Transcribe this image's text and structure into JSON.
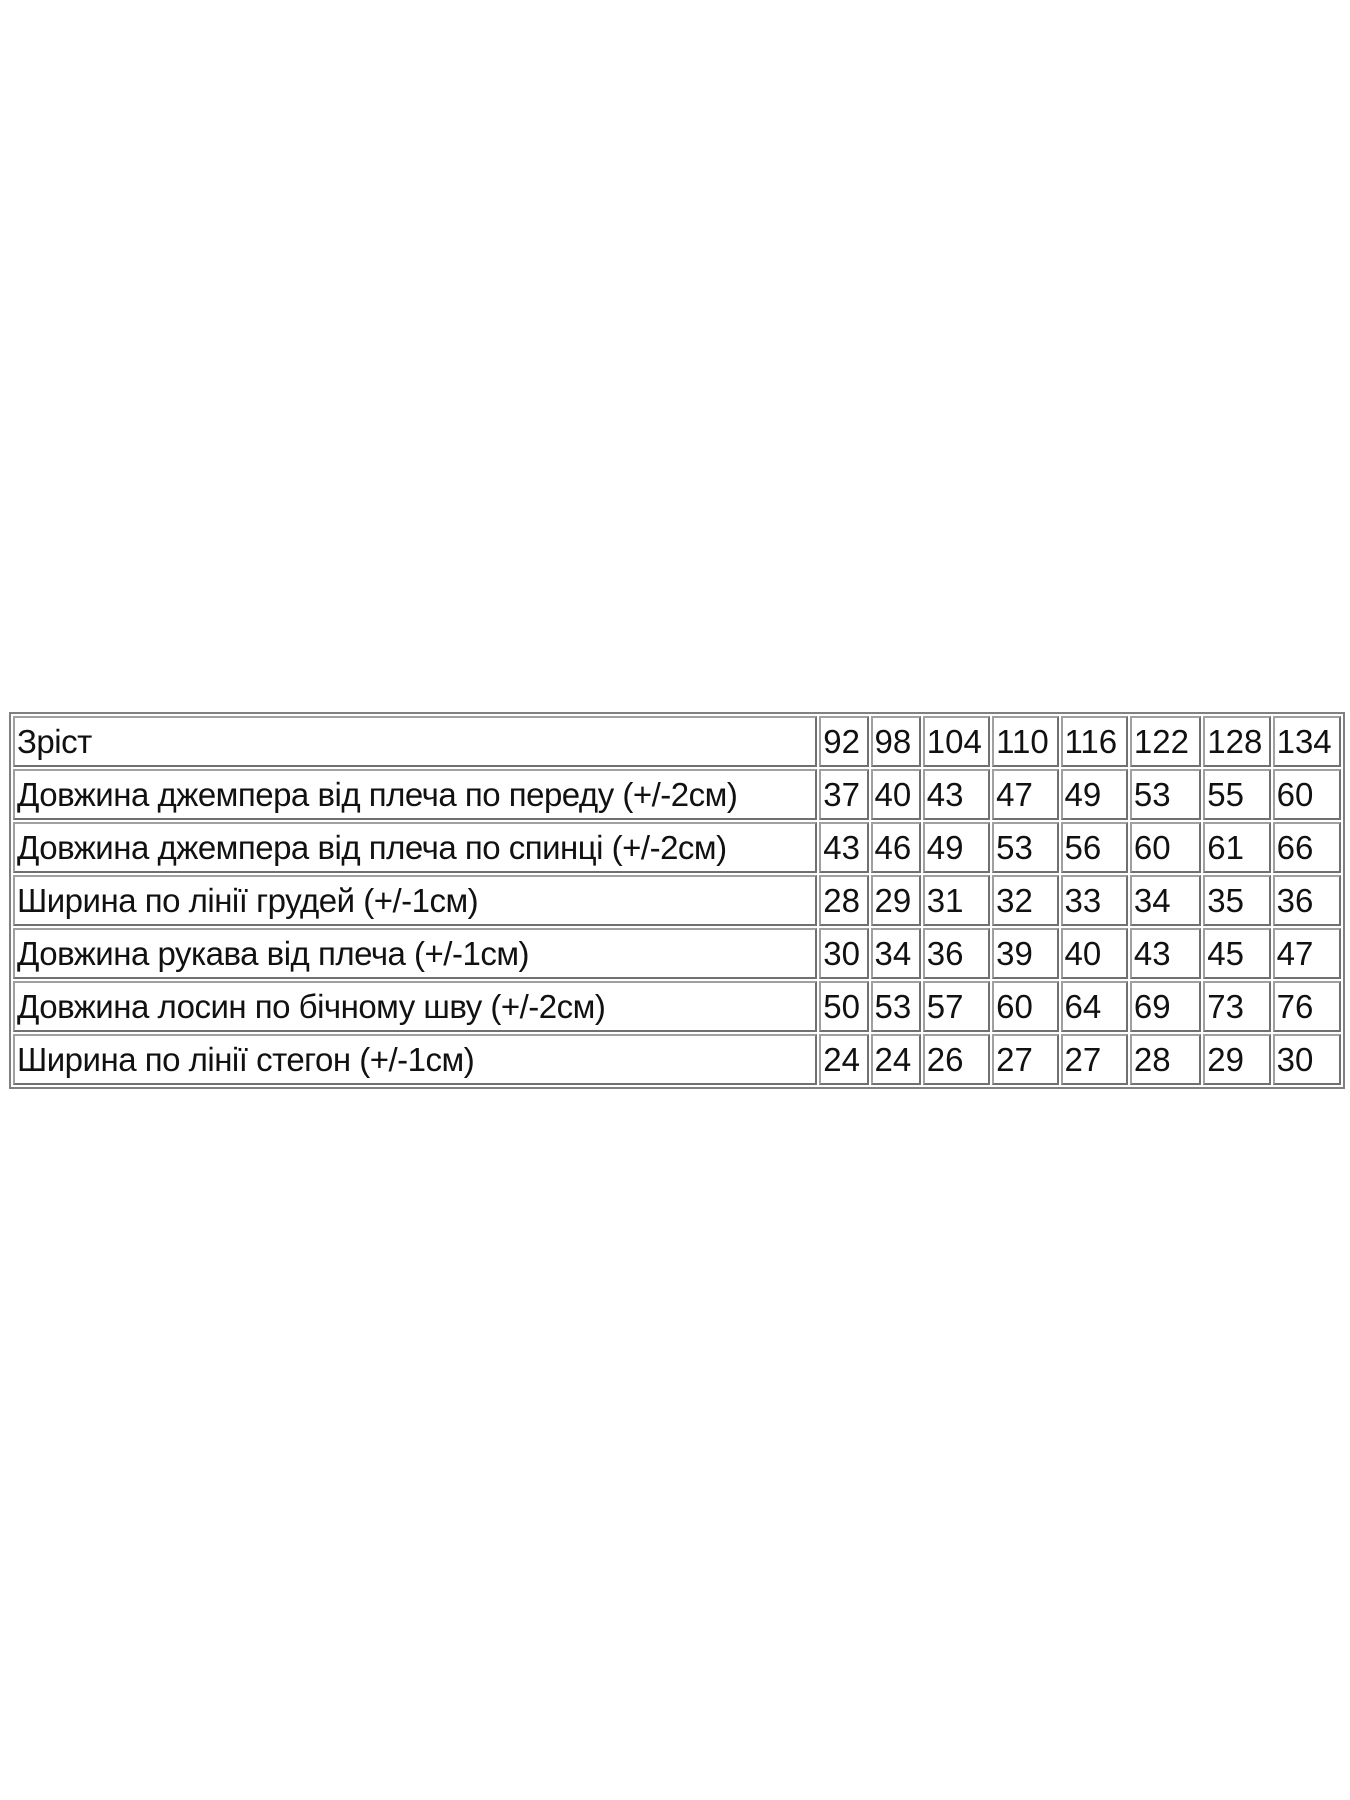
{
  "size_table": {
    "header": {
      "label": "Зріст",
      "values": [
        "92",
        "98",
        "104",
        "110",
        "116",
        "122",
        "128",
        "134"
      ]
    },
    "rows": [
      {
        "label": "Довжина джемпера від плеча по переду (+/-2см)",
        "values": [
          "37",
          "40",
          "43",
          "47",
          "49",
          "53",
          "55",
          "60"
        ]
      },
      {
        "label": "Довжина джемпера від плеча по спинці (+/-2см)",
        "values": [
          "43",
          "46",
          "49",
          "53",
          "56",
          "60",
          "61",
          "66"
        ]
      },
      {
        "label": "Ширина по лінії грудей (+/-1см)",
        "values": [
          "28",
          "29",
          "31",
          "32",
          "33",
          "34",
          "35",
          "36"
        ]
      },
      {
        "label": "Довжина рукава від плеча (+/-1см)",
        "values": [
          "30",
          "34",
          "36",
          "39",
          "40",
          "43",
          "45",
          "47"
        ]
      },
      {
        "label": "Довжина лосин по бічному шву (+/-2см)",
        "values": [
          "50",
          "53",
          "57",
          "60",
          "64",
          "69",
          "73",
          "76"
        ]
      },
      {
        "label": "Ширина по лінії стегон (+/-1см)",
        "values": [
          "24",
          "24",
          "26",
          "27",
          "27",
          "28",
          "29",
          "30"
        ]
      }
    ]
  }
}
